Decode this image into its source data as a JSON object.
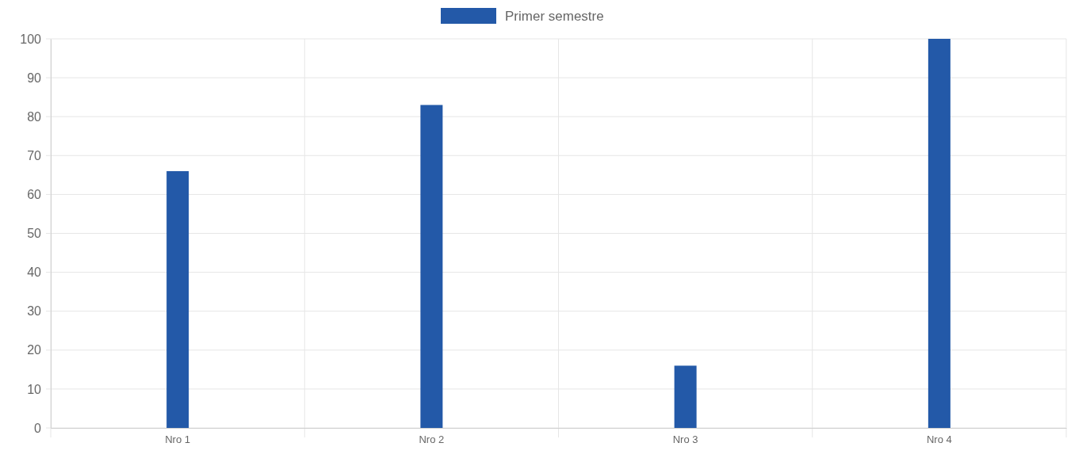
{
  "chart_data": {
    "type": "bar",
    "categories": [
      "Nro 1",
      "Nro 2",
      "Nro 3",
      "Nro 4"
    ],
    "series": [
      {
        "name": "Primer semestre",
        "color": "#2359a8",
        "values": [
          66,
          83,
          16,
          100
        ]
      }
    ],
    "ylim": [
      0,
      100
    ],
    "yticks": [
      0,
      10,
      20,
      30,
      40,
      50,
      60,
      70,
      80,
      90,
      100
    ],
    "grid": true,
    "legend": "top"
  }
}
